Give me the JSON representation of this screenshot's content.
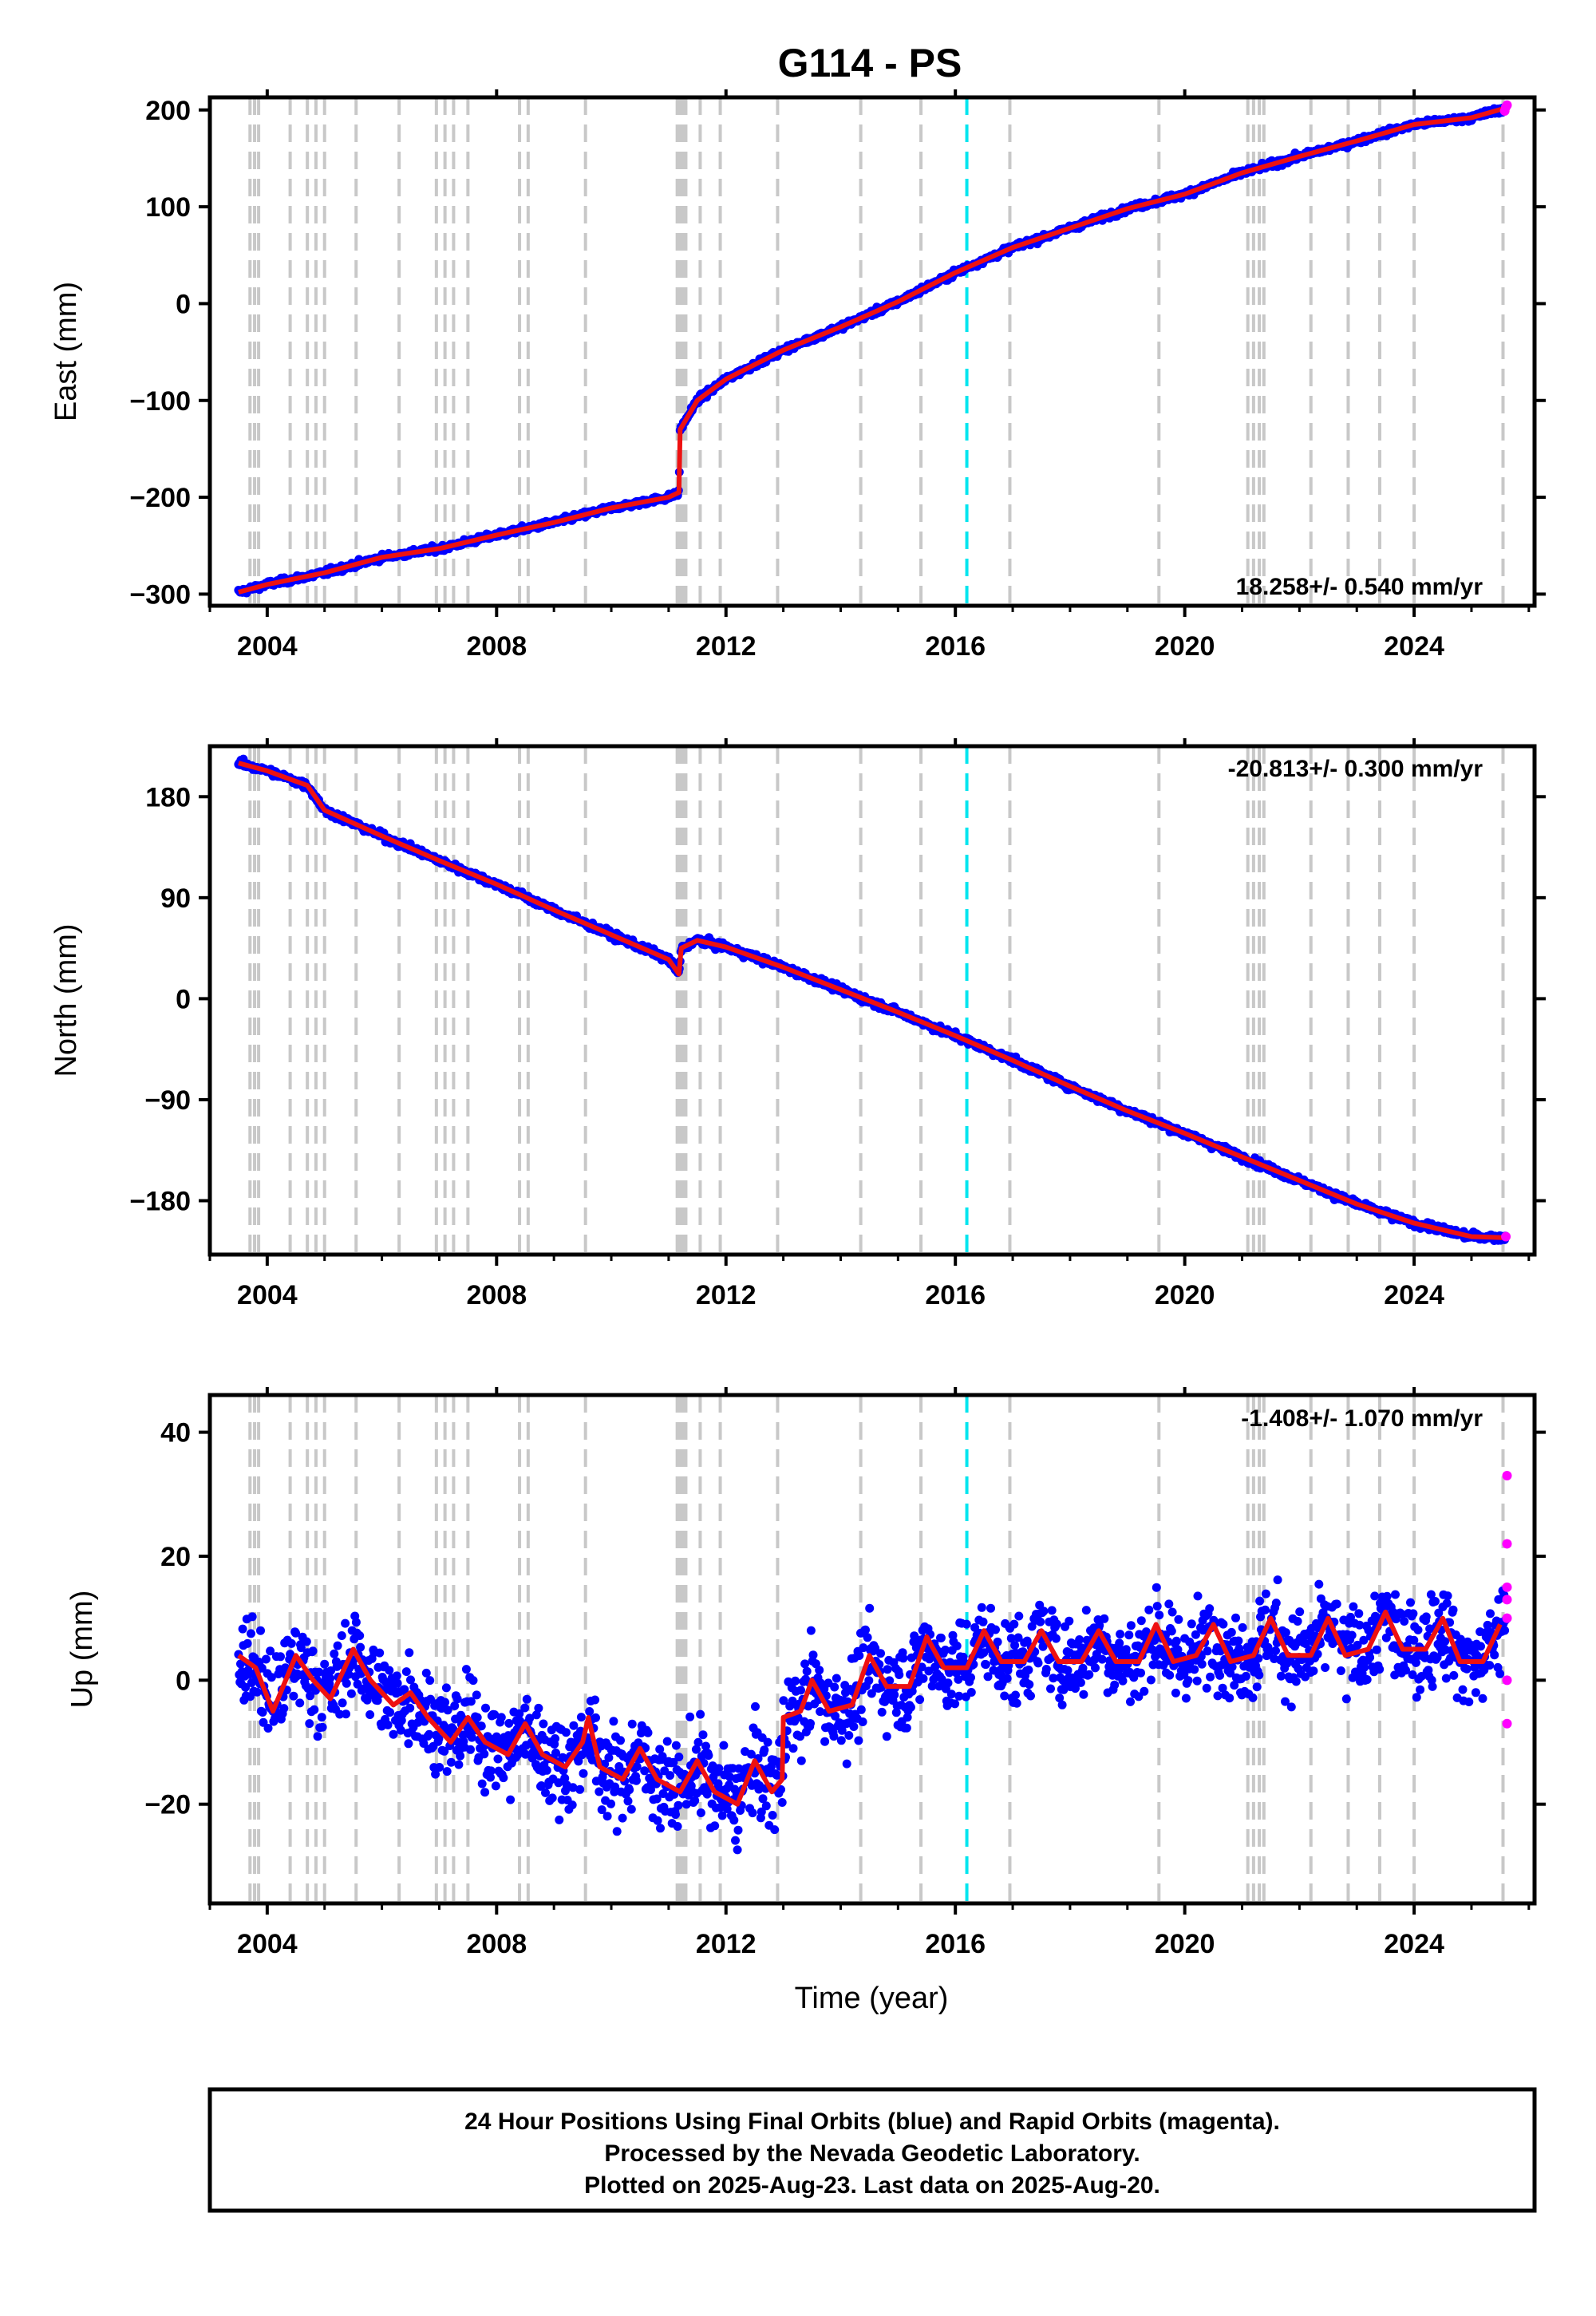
{
  "title": "G114 - PS",
  "xlabel": "Time (year)",
  "footer": {
    "line1": "24 Hour Positions Using Final Orbits (blue) and Rapid Orbits (magenta).",
    "line2": "Processed by the Nevada Geodetic Laboratory.",
    "line3": "Plotted on 2025-Aug-23. Last data on 2025-Aug-20."
  },
  "colors": {
    "final_orbits": "#0000ff",
    "rapid_orbits": "#ff00ff",
    "model_fit": "#ee1111",
    "event_lines": "#c8c8c8",
    "highlight_event": "#00e5ee"
  },
  "chart_data": [
    {
      "type": "scatter",
      "panel": "east",
      "ylabel": "East (mm)",
      "rate_label": "18.258+/- 0.540 mm/yr",
      "xlim": [
        2003.0,
        2026.1
      ],
      "ylim": [
        -312,
        213
      ],
      "xticks": [
        2004,
        2008,
        2012,
        2016,
        2020,
        2024
      ],
      "yticks": [
        -300,
        -200,
        -100,
        0,
        100,
        200
      ],
      "ytick_labels": [
        "−300",
        "−200",
        "−100",
        "0",
        "100",
        "200"
      ],
      "grid": false,
      "series": [
        {
          "name": "Final Orbits",
          "x": [
            2003.5,
            2004.0,
            2005.0,
            2006.0,
            2007.0,
            2008.0,
            2009.0,
            2010.0,
            2011.0,
            2011.18,
            2011.2,
            2011.5,
            2012.0,
            2013.0,
            2014.0,
            2015.0,
            2016.0,
            2017.0,
            2018.0,
            2019.0,
            2020.0,
            2021.0,
            2022.0,
            2023.0,
            2024.0,
            2025.0,
            2025.6
          ],
          "y": [
            -298,
            -290,
            -278,
            -262,
            -253,
            -239,
            -226,
            -211,
            -200,
            -195,
            -130,
            -100,
            -78,
            -48,
            -24,
            2,
            32,
            58,
            78,
            98,
            113,
            135,
            152,
            168,
            185,
            192,
            202
          ]
        },
        {
          "name": "Rapid Orbits",
          "x": [
            2025.58,
            2025.6,
            2025.62
          ],
          "y": [
            199,
            203,
            205
          ]
        },
        {
          "name": "Model Fit",
          "x": [
            2003.5,
            2004.0,
            2005.0,
            2006.0,
            2007.0,
            2008.0,
            2009.0,
            2010.0,
            2011.0,
            2011.18,
            2011.2,
            2011.5,
            2012.0,
            2013.0,
            2014.0,
            2015.0,
            2016.0,
            2017.0,
            2018.0,
            2019.0,
            2020.0,
            2021.0,
            2022.0,
            2023.0,
            2024.0,
            2025.0,
            2025.6
          ],
          "y": [
            -298,
            -290,
            -278,
            -262,
            -253,
            -239,
            -226,
            -211,
            -200,
            -195,
            -130,
            -100,
            -78,
            -48,
            -24,
            2,
            32,
            58,
            78,
            98,
            113,
            135,
            152,
            168,
            185,
            192,
            202
          ]
        }
      ]
    },
    {
      "type": "scatter",
      "panel": "north",
      "ylabel": "North (mm)",
      "rate_label": "-20.813+/- 0.300 mm/yr",
      "xlim": [
        2003.0,
        2026.1
      ],
      "ylim": [
        -228,
        225
      ],
      "xticks": [
        2004,
        2008,
        2012,
        2016,
        2020,
        2024
      ],
      "yticks": [
        -180,
        -90,
        0,
        90,
        180
      ],
      "ytick_labels": [
        "−180",
        "−90",
        "0",
        "90",
        "180"
      ],
      "grid": false,
      "series": [
        {
          "name": "Final Orbits",
          "x": [
            2003.5,
            2004.0,
            2004.7,
            2005.0,
            2006.0,
            2007.0,
            2008.0,
            2009.0,
            2010.0,
            2011.0,
            2011.18,
            2011.22,
            2011.5,
            2012.0,
            2013.0,
            2014.0,
            2015.0,
            2016.0,
            2017.0,
            2018.0,
            2019.0,
            2020.0,
            2021.0,
            2022.0,
            2023.0,
            2024.0,
            2025.0,
            2025.6
          ],
          "y": [
            210,
            203,
            190,
            168,
            145,
            123,
            102,
            79,
            57,
            35,
            22,
            45,
            52,
            46,
            28,
            8,
            -12,
            -33,
            -55,
            -78,
            -100,
            -120,
            -141,
            -162,
            -183,
            -200,
            -212,
            -213
          ]
        },
        {
          "name": "Rapid Orbits",
          "x": [
            2025.6
          ],
          "y": [
            -212
          ]
        },
        {
          "name": "Model Fit",
          "x": [
            2003.5,
            2004.0,
            2004.7,
            2005.0,
            2006.0,
            2007.0,
            2008.0,
            2009.0,
            2010.0,
            2011.0,
            2011.18,
            2011.22,
            2011.5,
            2012.0,
            2013.0,
            2014.0,
            2015.0,
            2016.0,
            2017.0,
            2018.0,
            2019.0,
            2020.0,
            2021.0,
            2022.0,
            2023.0,
            2024.0,
            2025.0,
            2025.6
          ],
          "y": [
            210,
            203,
            190,
            168,
            145,
            123,
            102,
            79,
            57,
            35,
            22,
            45,
            52,
            46,
            28,
            8,
            -12,
            -33,
            -55,
            -78,
            -100,
            -120,
            -141,
            -162,
            -183,
            -200,
            -212,
            -213
          ]
        }
      ]
    },
    {
      "type": "scatter",
      "panel": "up",
      "ylabel": "Up (mm)",
      "rate_label": "-1.408+/- 1.070 mm/yr",
      "xlim": [
        2003.0,
        2026.1
      ],
      "ylim": [
        -36,
        46
      ],
      "xticks": [
        2004,
        2008,
        2012,
        2016,
        2020,
        2024
      ],
      "yticks": [
        -20,
        0,
        20,
        40
      ],
      "ytick_labels": [
        "−20",
        "0",
        "20",
        "40"
      ],
      "grid": false,
      "scatter_scale_mm": 5,
      "series": [
        {
          "name": "Final Orbits",
          "x": [
            2003.5,
            2004.5,
            2005.5,
            2006.5,
            2007.5,
            2008.5,
            2009.5,
            2010.5,
            2011.5,
            2012.5,
            2013.0,
            2013.5,
            2014.5,
            2015.5,
            2016.5,
            2017.5,
            2018.5,
            2019.5,
            2020.5,
            2021.5,
            2022.5,
            2023.5,
            2024.5,
            2025.2,
            2025.6
          ],
          "y": [
            2,
            0,
            1,
            -4,
            -8,
            -12,
            -14,
            -15,
            -17,
            -17,
            -10,
            -3,
            -2,
            0,
            3,
            4,
            4,
            4,
            5,
            5,
            5,
            6,
            6,
            4,
            7
          ]
        },
        {
          "name": "Rapid Orbits",
          "x": [
            2025.62,
            2025.62,
            2025.62,
            2025.62,
            2025.62,
            2025.62,
            2025.62
          ],
          "y": [
            33,
            22,
            15,
            13,
            10,
            0,
            -7
          ]
        },
        {
          "name": "Model Fit",
          "x": [
            2003.5,
            2003.8,
            2004.1,
            2004.5,
            2004.8,
            2005.1,
            2005.5,
            2005.8,
            2006.2,
            2006.5,
            2006.8,
            2007.2,
            2007.5,
            2007.8,
            2008.2,
            2008.5,
            2008.8,
            2009.2,
            2009.5,
            2009.6,
            2009.8,
            2010.2,
            2010.5,
            2010.8,
            2011.2,
            2011.5,
            2011.8,
            2012.2,
            2012.5,
            2012.8,
            2012.98,
            2013.0,
            2013.3,
            2013.5,
            2013.8,
            2014.2,
            2014.5,
            2014.8,
            2015.2,
            2015.5,
            2015.8,
            2016.2,
            2016.5,
            2016.8,
            2017.2,
            2017.5,
            2017.8,
            2018.2,
            2018.5,
            2018.8,
            2019.2,
            2019.5,
            2019.8,
            2020.2,
            2020.5,
            2020.8,
            2021.2,
            2021.5,
            2021.8,
            2022.2,
            2022.5,
            2022.8,
            2023.2,
            2023.5,
            2023.8,
            2024.2,
            2024.5,
            2024.8,
            2025.2,
            2025.5
          ],
          "y": [
            4,
            2,
            -5,
            4,
            0,
            -3,
            5,
            0,
            -4,
            -2,
            -6,
            -10,
            -6,
            -10,
            -12,
            -7,
            -12,
            -14,
            -10,
            -6,
            -14,
            -16,
            -11,
            -16,
            -18,
            -13,
            -18,
            -20,
            -13,
            -18,
            -16,
            -6,
            -5,
            0,
            -5,
            -4,
            4,
            -1,
            -1,
            7,
            2,
            2,
            8,
            3,
            3,
            8,
            3,
            3,
            8,
            3,
            3,
            9,
            3,
            4,
            9,
            3,
            4,
            10,
            4,
            4,
            10,
            4,
            5,
            11,
            5,
            5,
            10,
            3,
            3,
            9
          ]
        }
      ]
    }
  ],
  "event_lines": {
    "gray": [
      2003.7,
      2003.78,
      2003.85,
      2004.4,
      2004.7,
      2004.85,
      2005.0,
      2005.55,
      2006.3,
      2006.95,
      2007.1,
      2007.25,
      2007.5,
      2008.4,
      2008.55,
      2009.55,
      2011.15,
      2011.2,
      2011.25,
      2011.3,
      2011.55,
      2011.9,
      2012.9,
      2014.35,
      2015.4,
      2016.95,
      2019.55,
      2021.1,
      2021.2,
      2021.3,
      2021.38,
      2022.2,
      2022.85,
      2023.4,
      2024.0,
      2025.55
    ],
    "cyan": [
      2016.2
    ]
  }
}
